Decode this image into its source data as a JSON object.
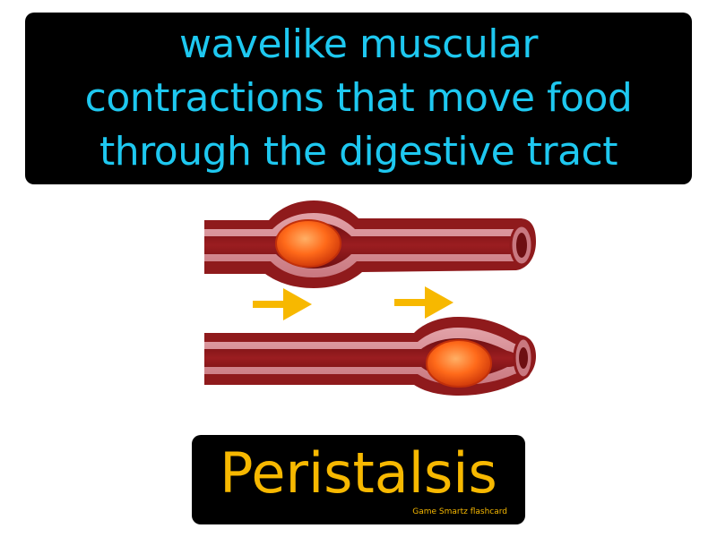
{
  "definition": {
    "lines": [
      "wavelike muscular",
      "contractions that move food",
      "through the digestive tract"
    ],
    "color": "#1ec8f0"
  },
  "term": {
    "text": "Peristalsis",
    "color": "#f7b800"
  },
  "credit": {
    "text": "Game Smartz flashcard"
  },
  "illustration": {
    "icons": [
      "intestine-tube-icon",
      "food-bolus-icon",
      "right-arrow-icon"
    ],
    "colors": {
      "tube_wall": "#8f1a1c",
      "tube_lining": "#d98c93",
      "bolus": "#ff6a1a",
      "arrow": "#f7b800"
    }
  }
}
